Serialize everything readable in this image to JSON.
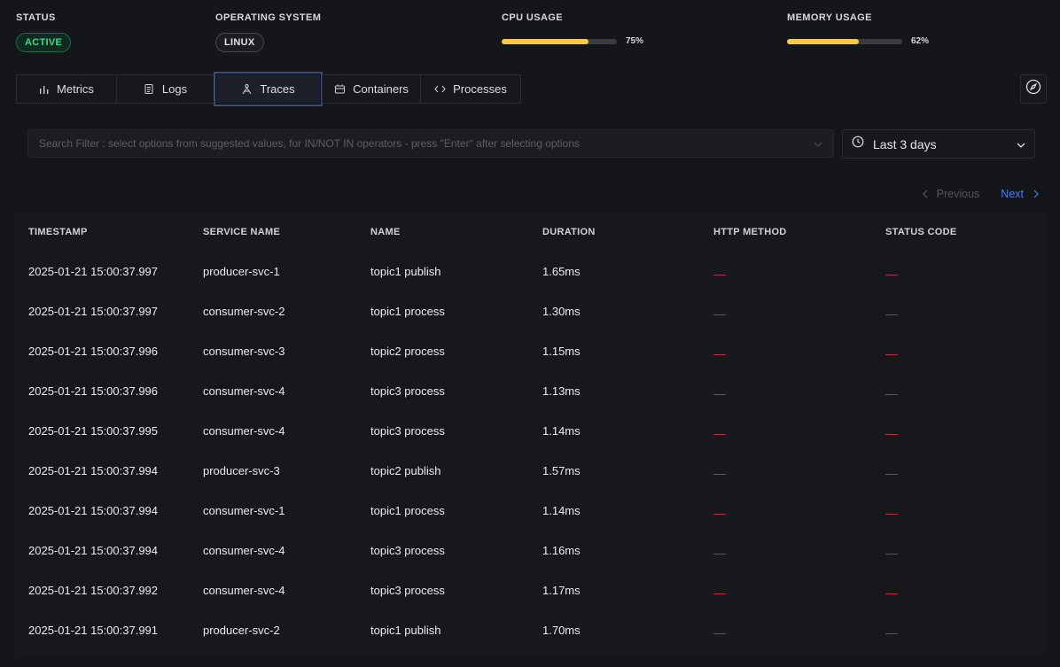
{
  "header": {
    "status": {
      "label": "STATUS",
      "value": "ACTIVE"
    },
    "os": {
      "label": "OPERATING SYSTEM",
      "value": "LINUX"
    },
    "cpu": {
      "label": "CPU USAGE",
      "percent_text": "75%",
      "percent": 75,
      "bar_color": "#f6c94a"
    },
    "memory": {
      "label": "MEMORY USAGE",
      "percent_text": "62%",
      "percent": 62,
      "bar_color": "#f6c94a"
    }
  },
  "tabs": [
    {
      "label": "Metrics",
      "icon": "bar-chart-icon"
    },
    {
      "label": "Logs",
      "icon": "scroll-icon"
    },
    {
      "label": "Traces",
      "icon": "route-icon",
      "selected": true
    },
    {
      "label": "Containers",
      "icon": "container-icon"
    },
    {
      "label": "Processes",
      "icon": "code-icon"
    }
  ],
  "toolbar": {
    "explore_icon": "compass-icon"
  },
  "filter": {
    "placeholder": "Search Filter : select options from suggested values, for IN/NOT IN operators - press \"Enter\" after selecting options",
    "time_range": "Last 3 days"
  },
  "pagination": {
    "previous": "Previous",
    "next": "Next"
  },
  "table": {
    "columns": [
      "TIMESTAMP",
      "SERVICE NAME",
      "NAME",
      "DURATION",
      "HTTP METHOD",
      "STATUS CODE"
    ],
    "rows": [
      [
        "2025-01-21 15:00:37.997",
        "producer-svc-1",
        "topic1 publish",
        "1.65ms"
      ],
      [
        "2025-01-21 15:00:37.997",
        "consumer-svc-2",
        "topic1 process",
        "1.30ms"
      ],
      [
        "2025-01-21 15:00:37.996",
        "consumer-svc-3",
        "topic2 process",
        "1.15ms"
      ],
      [
        "2025-01-21 15:00:37.996",
        "consumer-svc-4",
        "topic3 process",
        "1.13ms"
      ],
      [
        "2025-01-21 15:00:37.995",
        "consumer-svc-4",
        "topic3 process",
        "1.14ms"
      ],
      [
        "2025-01-21 15:00:37.994",
        "producer-svc-3",
        "topic2 publish",
        "1.57ms"
      ],
      [
        "2025-01-21 15:00:37.994",
        "consumer-svc-1",
        "topic1 process",
        "1.14ms"
      ],
      [
        "2025-01-21 15:00:37.994",
        "consumer-svc-4",
        "topic3 process",
        "1.16ms"
      ],
      [
        "2025-01-21 15:00:37.992",
        "consumer-svc-4",
        "topic3 process",
        "1.17ms"
      ],
      [
        "2025-01-21 15:00:37.991",
        "producer-svc-2",
        "topic1 publish",
        "1.70ms"
      ]
    ],
    "empty_cell_color": "#b0324a"
  }
}
